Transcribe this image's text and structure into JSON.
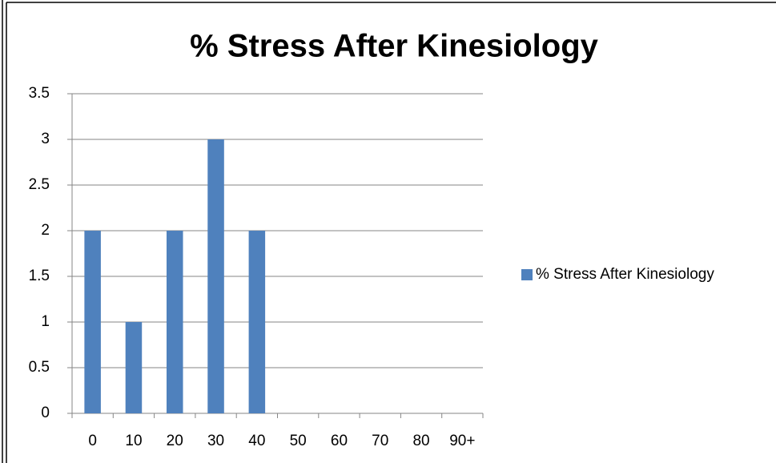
{
  "chart_data": {
    "type": "bar",
    "title": "% Stress After Kinesiology",
    "categories": [
      "0",
      "10",
      "20",
      "30",
      "40",
      "50",
      "60",
      "70",
      "80",
      "90+"
    ],
    "series": [
      {
        "name": "% Stress After Kinesiology",
        "color": "#4f81bd",
        "values": [
          2,
          1,
          2,
          3,
          2,
          0,
          0,
          0,
          0,
          0
        ]
      }
    ],
    "ylim": [
      0,
      3.5
    ],
    "yticks": [
      0,
      0.5,
      1,
      1.5,
      2,
      2.5,
      3,
      3.5
    ],
    "grid": true,
    "legend": "right"
  }
}
